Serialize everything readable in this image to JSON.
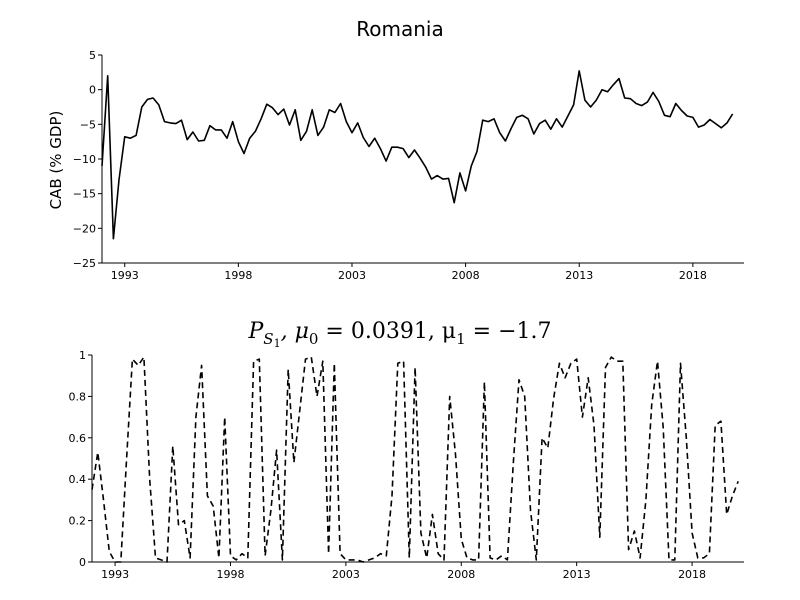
{
  "chart_data": [
    {
      "type": "line",
      "title": "Romania",
      "xlabel": "",
      "ylabel": "CAB (% GDP)",
      "xlim": [
        1992.0,
        2020.25
      ],
      "ylim": [
        -25,
        5
      ],
      "x_ticks": [
        "1993",
        "1998",
        "2003",
        "2008",
        "2013",
        "2018"
      ],
      "y_ticks": [
        "5",
        "0",
        "−5",
        "−10",
        "−15",
        "−20",
        "−25"
      ],
      "line_style": "solid",
      "x_start": 1992.0,
      "x_step": 0.25,
      "values": [
        -11,
        2,
        -21.5,
        -13,
        -6.8,
        -7,
        -6.6,
        -2.5,
        -1.4,
        -1.2,
        -2.2,
        -4.6,
        -4.8,
        -4.9,
        -4.4,
        -7.2,
        -6.1,
        -7.4,
        -7.3,
        -5.2,
        -5.8,
        -5.8,
        -7,
        -4.6,
        -7.5,
        -9.2,
        -7,
        -6,
        -4.2,
        -2.1,
        -2.6,
        -3.6,
        -2.8,
        -5.1,
        -2.9,
        -7.3,
        -6,
        -2.9,
        -6.6,
        -5.4,
        -2.9,
        -3.3,
        -2,
        -4.6,
        -6.2,
        -4.8,
        -6.9,
        -8.2,
        -7,
        -8.5,
        -10.3,
        -8.3,
        -8.3,
        -8.5,
        -9.8,
        -8.7,
        -9.9,
        -11.2,
        -12.9,
        -12.4,
        -12.9,
        -12.8,
        -16.3,
        -12,
        -14.6,
        -11,
        -8.9,
        -4.4,
        -4.6,
        -4.2,
        -6.2,
        -7.4,
        -5.6,
        -4.0,
        -3.7,
        -4.2,
        -6.4,
        -4.9,
        -4.4,
        -5.7,
        -4.2,
        -5.4,
        -3.8,
        -2.2,
        2.7,
        -1.5,
        -2.5,
        -1.5,
        0.0,
        -0.3,
        0.7,
        1.6,
        -1.2,
        -1.3,
        -2.0,
        -2.3,
        -1.8,
        -0.4,
        -1.7,
        -3.7,
        -3.9,
        -2.0,
        -3.0,
        -3.8,
        -4.0,
        -5.4,
        -5.1,
        -4.3,
        -4.9,
        -5.5,
        -4.8,
        -3.5
      ]
    },
    {
      "type": "line",
      "title_tex": {
        "symbol": "P",
        "subscript": "S",
        "subsubscript": "1",
        "mid": ", μ",
        "mu0_sub": "0",
        "mu0_eq": " = 0.0391, μ",
        "mu1_sub": "1",
        "mu1_eq": " = −1.7"
      },
      "xlabel": "",
      "ylabel": "",
      "xlim": [
        1992.0,
        2020.25
      ],
      "ylim": [
        0,
        1
      ],
      "x_ticks": [
        "1993",
        "1998",
        "2003",
        "2008",
        "2013",
        "2018"
      ],
      "y_ticks": [
        "1",
        "0.8",
        "0.6",
        "0.4",
        "0.2",
        "0"
      ],
      "line_style": "dashed",
      "x_start": 1992.0,
      "x_step": 0.25,
      "values": [
        0.35,
        0.53,
        0.3,
        0.05,
        0.0,
        0.0,
        0.5,
        0.98,
        0.95,
        0.99,
        0.4,
        0.02,
        0.01,
        0.0,
        0.56,
        0.18,
        0.2,
        0.02,
        0.7,
        0.95,
        0.32,
        0.27,
        0.02,
        0.7,
        0.03,
        0.01,
        0.04,
        0.02,
        0.97,
        0.98,
        0.03,
        0.25,
        0.54,
        0.01,
        0.93,
        0.48,
        0.73,
        0.98,
        0.99,
        0.8,
        0.97,
        0.04,
        0.96,
        0.04,
        0.01,
        0.01,
        0.01,
        0.0,
        0.01,
        0.02,
        0.04,
        0.03,
        0.32,
        0.96,
        0.97,
        0.02,
        0.94,
        0.14,
        0.02,
        0.23,
        0.04,
        0.01,
        0.8,
        0.52,
        0.11,
        0.02,
        0.01,
        0.01,
        0.87,
        0.02,
        0.01,
        0.03,
        0.01,
        0.47,
        0.88,
        0.8,
        0.25,
        0.01,
        0.6,
        0.55,
        0.79,
        0.96,
        0.89,
        0.96,
        0.98,
        0.7,
        0.89,
        0.66,
        0.12,
        0.94,
        0.99,
        0.97,
        0.97,
        0.06,
        0.15,
        0.02,
        0.3,
        0.76,
        0.97,
        0.65,
        0.01,
        0.01,
        0.96,
        0.6,
        0.14,
        0.02,
        0.02,
        0.04,
        0.66,
        0.68,
        0.23,
        0.32,
        0.39
      ]
    }
  ]
}
